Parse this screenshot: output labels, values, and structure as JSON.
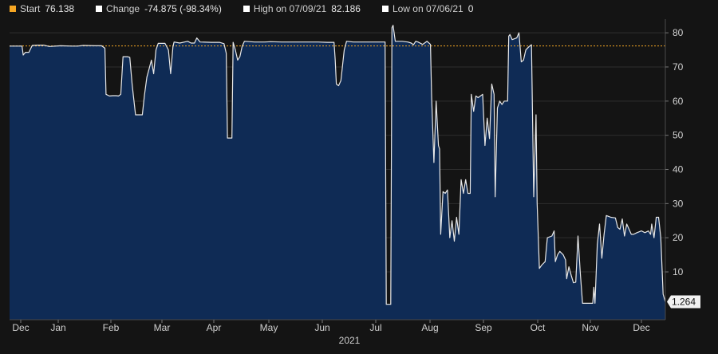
{
  "legend": {
    "start": {
      "label": "Start",
      "value": "76.138",
      "color": "#f5a623"
    },
    "change": {
      "label": "Change",
      "value": "-74.875 (-98.34%)",
      "color": "#ffffff"
    },
    "high": {
      "label": "High on 07/09/21",
      "value": "82.186",
      "color": "#ffffff"
    },
    "low": {
      "label": "Low on 07/06/21",
      "value": "0",
      "color": "#ffffff"
    }
  },
  "last_value_label": "1.264",
  "year_label": "2021",
  "colors": {
    "background": "#141414",
    "area_fill": "#0f2b55",
    "line": "#e8e8e8",
    "reference_line": "#f5a623",
    "grid": "#2e2e2e"
  },
  "chart_data": {
    "type": "area",
    "title": "",
    "xlabel": "",
    "ylabel": "",
    "x_tick_labels": [
      "Dec",
      "Jan",
      "Feb",
      "Mar",
      "Apr",
      "May",
      "Jun",
      "Jul",
      "Aug",
      "Sep",
      "Oct",
      "Nov",
      "Dec"
    ],
    "y_ticks": [
      10,
      20,
      30,
      40,
      50,
      60,
      70,
      80
    ],
    "ylim": [
      -4,
      84
    ],
    "grid": true,
    "y_axis_side": "right",
    "reference_line": 76.138,
    "series": [
      {
        "values": [
          [
            0,
            76.1
          ],
          [
            8,
            76.1
          ],
          [
            11,
            76.1
          ],
          [
            12,
            73.5
          ],
          [
            14,
            74.3
          ],
          [
            17,
            74.3
          ],
          [
            20,
            76.3
          ],
          [
            25,
            76.4
          ],
          [
            30,
            76.4
          ],
          [
            35,
            76.0
          ],
          [
            45,
            76.2
          ],
          [
            55,
            76.1
          ],
          [
            60,
            76.1
          ],
          [
            65,
            76.3
          ],
          [
            75,
            76.2
          ],
          [
            81,
            76.2
          ],
          [
            84,
            75.5
          ],
          [
            85,
            62.0
          ],
          [
            88,
            61.5
          ],
          [
            91,
            61.6
          ],
          [
            94,
            61.6
          ],
          [
            96,
            61.5
          ],
          [
            98,
            62.0
          ],
          [
            100,
            73.0
          ],
          [
            104,
            73.0
          ],
          [
            106,
            72.8
          ],
          [
            108,
            65.0
          ],
          [
            109,
            62.0
          ],
          [
            111,
            56.0
          ],
          [
            115,
            56.0
          ],
          [
            117,
            56.0
          ],
          [
            119,
            62.0
          ],
          [
            121,
            67.0
          ],
          [
            125,
            72.0
          ],
          [
            127,
            68.0
          ],
          [
            129,
            75.0
          ],
          [
            131,
            76.9
          ],
          [
            137,
            76.9
          ],
          [
            140,
            75.0
          ],
          [
            142,
            68.0
          ],
          [
            144,
            76.0
          ],
          [
            145,
            77.3
          ],
          [
            150,
            77.0
          ],
          [
            157,
            77.5
          ],
          [
            160,
            77.0
          ],
          [
            163,
            77.0
          ],
          [
            165,
            78.5
          ],
          [
            168,
            77.3
          ],
          [
            178,
            77.2
          ],
          [
            185,
            77.2
          ],
          [
            189,
            76.8
          ],
          [
            191,
            74.0
          ],
          [
            192,
            49.2
          ],
          [
            196,
            49.2
          ],
          [
            197,
            77.2
          ],
          [
            199,
            75.0
          ],
          [
            201,
            72.0
          ],
          [
            203,
            73.0
          ],
          [
            205,
            76.0
          ],
          [
            207,
            77.5
          ],
          [
            216,
            77.3
          ],
          [
            225,
            77.3
          ],
          [
            230,
            77.4
          ],
          [
            240,
            77.3
          ],
          [
            250,
            77.3
          ],
          [
            258,
            77.3
          ],
          [
            265,
            77.3
          ],
          [
            272,
            77.3
          ],
          [
            280,
            77.2
          ],
          [
            286,
            77.2
          ],
          [
            287,
            72.0
          ],
          [
            288,
            65.0
          ],
          [
            290,
            64.5
          ],
          [
            292,
            66.0
          ],
          [
            295,
            75.0
          ],
          [
            297,
            77.5
          ],
          [
            303,
            77.3
          ],
          [
            312,
            77.3
          ],
          [
            320,
            77.3
          ],
          [
            328,
            77.3
          ],
          [
            331,
            77.3
          ],
          [
            332,
            0.5
          ],
          [
            336,
            0.5
          ],
          [
            337,
            81.5
          ],
          [
            338,
            82.2
          ],
          [
            340,
            77.5
          ],
          [
            346,
            77.5
          ],
          [
            351,
            77.3
          ],
          [
            354,
            77.0
          ],
          [
            356,
            76.5
          ],
          [
            358,
            77.5
          ],
          [
            360,
            77.3
          ],
          [
            364,
            76.6
          ],
          [
            368,
            77.5
          ],
          [
            371,
            76.6
          ],
          [
            372,
            61.5
          ],
          [
            374,
            42.0
          ],
          [
            376,
            60.0
          ],
          [
            378,
            47.0
          ],
          [
            379,
            46.0
          ],
          [
            380,
            21.0
          ],
          [
            382,
            33.5
          ],
          [
            384,
            33.0
          ],
          [
            386,
            34.0
          ],
          [
            388,
            20.0
          ],
          [
            390,
            25.0
          ],
          [
            392,
            19.0
          ],
          [
            394,
            26.0
          ],
          [
            396,
            21.0
          ],
          [
            398,
            37.0
          ],
          [
            400,
            33.0
          ],
          [
            402,
            37.0
          ],
          [
            404,
            33.0
          ],
          [
            406,
            33.0
          ],
          [
            407,
            62.0
          ],
          [
            409,
            57.0
          ],
          [
            411,
            61.5
          ],
          [
            413,
            61.0
          ],
          [
            417,
            62.0
          ],
          [
            419,
            47.0
          ],
          [
            421,
            55.0
          ],
          [
            423,
            49.0
          ],
          [
            425,
            65.0
          ],
          [
            427,
            62.0
          ],
          [
            428,
            32.0
          ],
          [
            430,
            58.0
          ],
          [
            432,
            60.0
          ],
          [
            434,
            59.0
          ],
          [
            436,
            60.0
          ],
          [
            439,
            60.0
          ],
          [
            440,
            79.0
          ],
          [
            441,
            79.5
          ],
          [
            443,
            78.0
          ],
          [
            447,
            78.5
          ],
          [
            449,
            80.0
          ],
          [
            451,
            71.5
          ],
          [
            453,
            72.0
          ],
          [
            455,
            75.0
          ],
          [
            458,
            76.0
          ],
          [
            460,
            76.5
          ],
          [
            462,
            32.0
          ],
          [
            464,
            56.0
          ],
          [
            465,
            30.0
          ],
          [
            467,
            11.0
          ],
          [
            469,
            12.0
          ],
          [
            472,
            13.0
          ],
          [
            474,
            20.0
          ],
          [
            478,
            20.5
          ],
          [
            480,
            22.0
          ],
          [
            481,
            13.0
          ],
          [
            483,
            15.0
          ],
          [
            485,
            16.0
          ],
          [
            488,
            15.0
          ],
          [
            490,
            13.5
          ],
          [
            491,
            8.0
          ],
          [
            493,
            11.5
          ],
          [
            495,
            9.0
          ],
          [
            497,
            6.8
          ],
          [
            499,
            7.0
          ],
          [
            501,
            20.5
          ],
          [
            503,
            10.0
          ],
          [
            505,
            0.8
          ],
          [
            510,
            0.8
          ],
          [
            514,
            0.8
          ],
          [
            515,
            5.5
          ],
          [
            516,
            0.8
          ],
          [
            518,
            18.0
          ],
          [
            520,
            24.0
          ],
          [
            522,
            14.0
          ],
          [
            524,
            21.0
          ],
          [
            526,
            26.5
          ],
          [
            530,
            26.0
          ],
          [
            534,
            25.8
          ],
          [
            536,
            23.0
          ],
          [
            538,
            22.5
          ],
          [
            540,
            25.5
          ],
          [
            542,
            20.5
          ],
          [
            544,
            24.0
          ],
          [
            546,
            22.5
          ],
          [
            548,
            21.0
          ],
          [
            550,
            21.0
          ],
          [
            553,
            21.5
          ],
          [
            557,
            22.0
          ],
          [
            560,
            21.5
          ],
          [
            563,
            22.0
          ],
          [
            565,
            21.0
          ],
          [
            566,
            24.0
          ],
          [
            568,
            20.0
          ],
          [
            570,
            26.0
          ],
          [
            572,
            26.0
          ],
          [
            574,
            20.0
          ],
          [
            576,
            3.5
          ],
          [
            578,
            1.264
          ]
        ]
      }
    ]
  }
}
